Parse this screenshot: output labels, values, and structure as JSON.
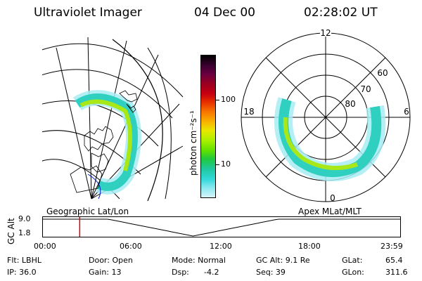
{
  "header": {
    "instrument": "Ultraviolet Imager",
    "date": "04 Dec 00",
    "time": "02:28:02 UT"
  },
  "geo_panel": {
    "label": "Geographic Lat/Lon"
  },
  "polar_panel": {
    "label": "Apex MLat/MLT",
    "mlt_labels": {
      "top": "12",
      "left": "18",
      "right": "6",
      "bottom": "0"
    },
    "lat_labels": [
      "60",
      "70",
      "80"
    ]
  },
  "colorbar": {
    "unit_label": "photon cm⁻²s⁻¹",
    "tick_labels": [
      "100",
      "10"
    ],
    "colors": [
      "#000000",
      "#3a0030",
      "#6a0040",
      "#9a0020",
      "#c80010",
      "#e83000",
      "#f87800",
      "#f8b400",
      "#e8e800",
      "#a8f000",
      "#60e000",
      "#20c840",
      "#20c8a0",
      "#30d8d8",
      "#88e8f0",
      "#d8f4fa"
    ]
  },
  "timeline": {
    "y_axis_label": "GC Alt",
    "y_ticks": [
      "9.0",
      "1.8"
    ],
    "x_ticks": [
      "00:00",
      "06:00",
      "12:00",
      "18:00",
      "23:59"
    ],
    "marker_time_ut": "02:28:02",
    "marker_fraction": 0.103,
    "marker_color": "#e00000"
  },
  "footer": {
    "col1": [
      "Flt: LBHL",
      "IP: 36.0"
    ],
    "col2": [
      "Door: Open",
      "Gain: 13"
    ],
    "col3": [
      "Mode: Normal",
      "Dsp:",
      "-4.2"
    ],
    "col4": [
      "GC Alt: 9.1 Re",
      "Seq: 39"
    ],
    "col5": [
      "GLat:",
      "65.4",
      "GLon:",
      "311.6"
    ]
  },
  "auroral_colors": {
    "outer": "#a8ecf4",
    "mid": "#30d0c0",
    "inner": "#a8e818",
    "core": "#50cc30"
  }
}
